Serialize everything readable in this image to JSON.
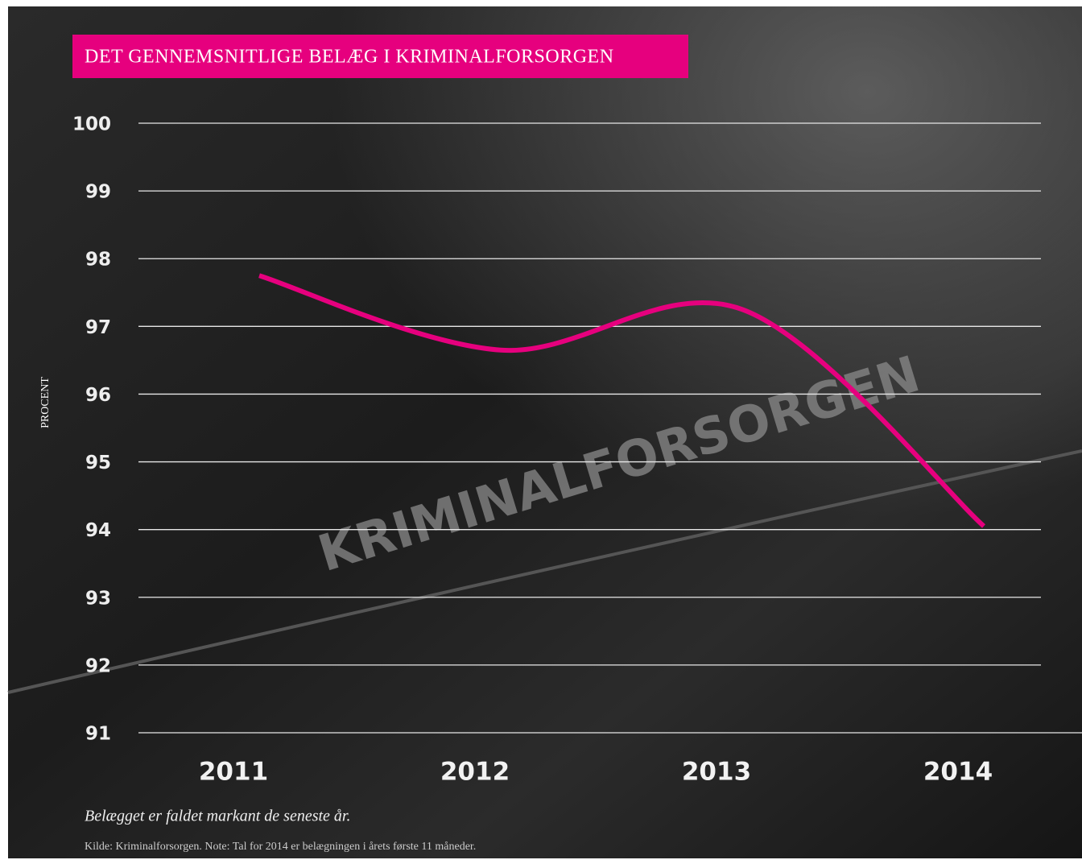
{
  "chart_data": {
    "type": "line",
    "title": "DET GENNEMSNITLIGE BELÆG I KRIMINALFORSORGEN",
    "y_label": "PROCENT",
    "categories": [
      "2011",
      "2012",
      "2013",
      "2014"
    ],
    "values": [
      97.75,
      96.65,
      97.25,
      94.05
    ],
    "color": "#e6007e",
    "ylim": [
      91,
      100
    ],
    "yticks": [
      91,
      92,
      93,
      94,
      95,
      96,
      97,
      98,
      99,
      100
    ],
    "grid": true,
    "caption": "Belægget er faldet markant de seneste år.",
    "source": "Kilde: Kriminalforsorgen. Note: Tal for 2014 er belægningen i årets første 11 måneder.",
    "background_text": "KRIMINALFORSORGEN"
  }
}
